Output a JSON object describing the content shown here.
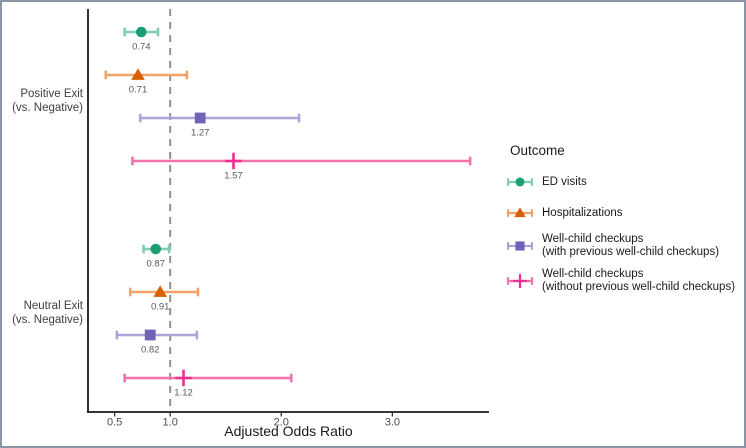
{
  "window": {
    "background": "#ffffff",
    "border_color": "#8a96a6"
  },
  "chart_data": {
    "type": "forest-pointrange",
    "title": "",
    "xlabel": "Adjusted Odds Ratio",
    "ylabel": "",
    "axis": {
      "scale": "linear",
      "min": 0.26,
      "max": 3.87,
      "ticks": [
        "0.5",
        "1.0",
        "2.0",
        "3.0"
      ],
      "tick_values": [
        0.5,
        1.0,
        2.0,
        3.0
      ],
      "reference_line": 1.0
    },
    "legend": {
      "title": "Outcome",
      "position": "right"
    },
    "outcomes": [
      {
        "id": "ed-visits",
        "label": "ED visits",
        "marker": "circle",
        "color": "#1b9e77",
        "bar_color": "#82ccb1"
      },
      {
        "id": "hospitalizations",
        "label": "Hospitalizations",
        "marker": "triangle",
        "color": "#d95f02",
        "bar_color": "#f0a269"
      },
      {
        "id": "well-child-with-previous",
        "label": "Well-child checkups\n(with previous well-child checkups)",
        "marker": "square",
        "color": "#6f63b8",
        "bar_color": "#aba6d8"
      },
      {
        "id": "well-child-without-previous",
        "label": "Well-child checkups\n(without previous well-child checkups)",
        "marker": "plus",
        "color": "#ee2f92",
        "bar_color": "#f472ab"
      }
    ],
    "groups": [
      {
        "label": "Positive Exit\n(vs. Negative)",
        "estimates": [
          {
            "outcome": "ed-visits",
            "or": 0.74,
            "ci_low": 0.59,
            "ci_high": 0.89,
            "label": "0.74"
          },
          {
            "outcome": "hospitalizations",
            "or": 0.71,
            "ci_low": 0.42,
            "ci_high": 1.15,
            "label": "0.71"
          },
          {
            "outcome": "well-child-with-previous",
            "or": 1.27,
            "ci_low": 0.73,
            "ci_high": 2.16,
            "label": "1.27"
          },
          {
            "outcome": "well-child-without-previous",
            "or": 1.57,
            "ci_low": 0.66,
            "ci_high": 3.7,
            "label": "1.57"
          }
        ]
      },
      {
        "label": "Neutral Exit\n(vs. Negative)",
        "estimates": [
          {
            "outcome": "ed-visits",
            "or": 0.87,
            "ci_low": 0.76,
            "ci_high": 0.99,
            "label": "0.87"
          },
          {
            "outcome": "hospitalizations",
            "or": 0.91,
            "ci_low": 0.64,
            "ci_high": 1.25,
            "label": "0.91"
          },
          {
            "outcome": "well-child-with-previous",
            "or": 0.82,
            "ci_low": 0.52,
            "ci_high": 1.24,
            "label": "0.82"
          },
          {
            "outcome": "well-child-without-previous",
            "or": 1.12,
            "ci_low": 0.59,
            "ci_high": 2.09,
            "label": "1.12"
          }
        ]
      }
    ],
    "style": {
      "reference_line_color": "#8c8c8c",
      "axis_color": "#1a1a1a",
      "tick_label_color": "#4d4d4d",
      "value_label_color": "#595959",
      "group_label_color": "#404040"
    }
  }
}
